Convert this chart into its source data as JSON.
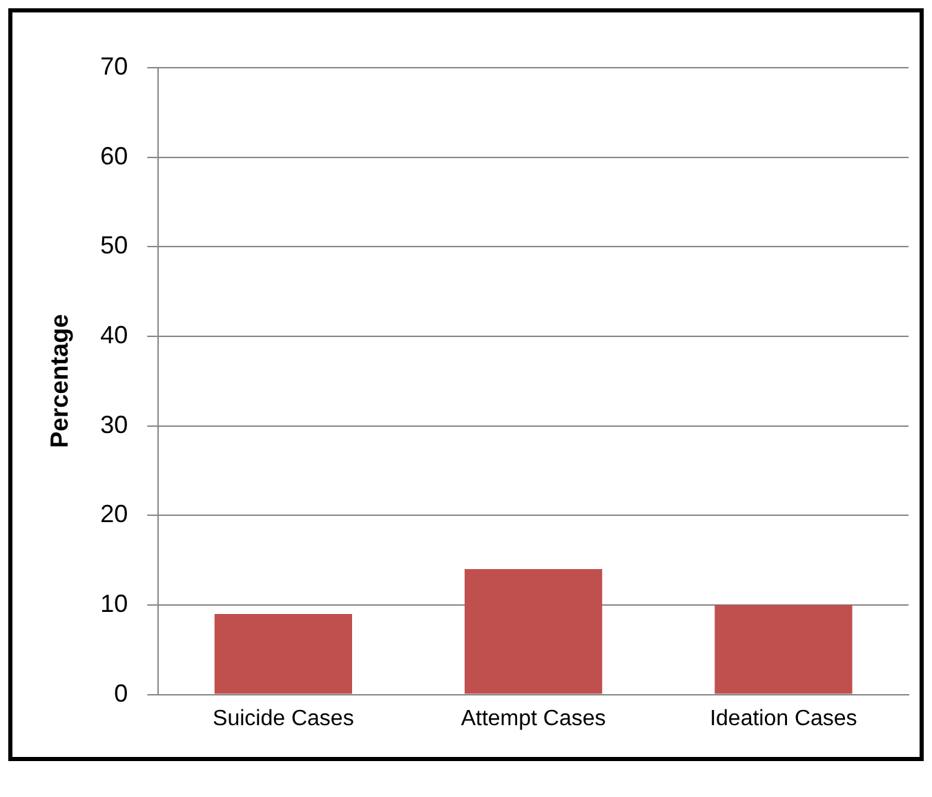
{
  "chart_data": {
    "type": "bar",
    "ylabel": "Percentage",
    "categories": [
      "Suicide Cases",
      "Attempt Cases",
      "Ideation Cases"
    ],
    "values": [
      9,
      14,
      10
    ],
    "color": "#c0504d",
    "ylim": [
      0,
      70
    ],
    "yticks": [
      0,
      10,
      20,
      30,
      40,
      50,
      60,
      70
    ],
    "grid": "y"
  }
}
